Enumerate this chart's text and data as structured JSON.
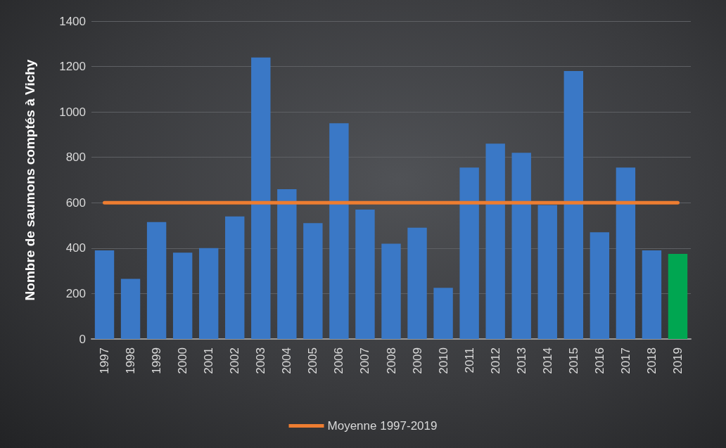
{
  "chart_data": {
    "type": "bar",
    "ylabel": "Nombre de saumons comptés à Vichy",
    "categories": [
      "1997",
      "1998",
      "1999",
      "2000",
      "2001",
      "2002",
      "2003",
      "2004",
      "2005",
      "2006",
      "2007",
      "2008",
      "2009",
      "2010",
      "2011",
      "2012",
      "2013",
      "2014",
      "2015",
      "2016",
      "2017",
      "2018",
      "2019"
    ],
    "series": [
      {
        "colors": [
          "#3a78c6",
          "#3a78c6",
          "#3a78c6",
          "#3a78c6",
          "#3a78c6",
          "#3a78c6",
          "#3a78c6",
          "#3a78c6",
          "#3a78c6",
          "#3a78c6",
          "#3a78c6",
          "#3a78c6",
          "#3a78c6",
          "#3a78c6",
          "#3a78c6",
          "#3a78c6",
          "#3a78c6",
          "#3a78c6",
          "#3a78c6",
          "#3a78c6",
          "#3a78c6",
          "#3a78c6",
          "#00a651"
        ],
        "values": [
          390,
          265,
          515,
          380,
          400,
          540,
          1240,
          660,
          510,
          950,
          570,
          420,
          490,
          225,
          755,
          860,
          820,
          590,
          1180,
          470,
          755,
          390,
          375
        ]
      },
      {
        "type": "line",
        "name": "Moyenne 1997-2019",
        "color": "#ed7d31",
        "values": [
          600,
          600,
          600,
          600,
          600,
          600,
          600,
          600,
          600,
          600,
          600,
          600,
          600,
          600,
          600,
          600,
          600,
          600,
          600,
          600,
          600,
          600,
          600
        ]
      }
    ],
    "ylim": [
      0,
      1400
    ],
    "yticks": [
      0,
      200,
      400,
      600,
      800,
      1000,
      1200,
      1400
    ],
    "grid": "y",
    "legend": "bottom",
    "marker": "none"
  }
}
